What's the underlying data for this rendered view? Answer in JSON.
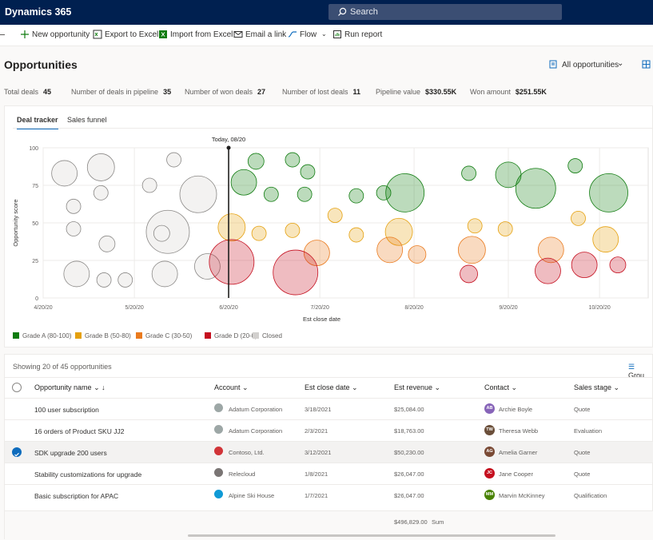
{
  "app": {
    "title": "Dynamics 365"
  },
  "search": {
    "placeholder": "Search"
  },
  "commands": [
    {
      "label": "New opportunity"
    },
    {
      "label": "Export to Excel"
    },
    {
      "label": "Import from Excel"
    },
    {
      "label": "Email a link"
    },
    {
      "label": "Flow"
    },
    {
      "label": "Run report"
    }
  ],
  "page": {
    "title": "Opportunities",
    "view": "All opportunities"
  },
  "stats": [
    {
      "label": "Total deals",
      "value": "45"
    },
    {
      "label": "Number of deals in pipeline",
      "value": "35"
    },
    {
      "label": "Number of won deals",
      "value": "27"
    },
    {
      "label": "Number of lost deals",
      "value": "11"
    },
    {
      "label": "Pipeline value",
      "value": "$330.55K"
    },
    {
      "label": "Won amount",
      "value": "$251.55K"
    }
  ],
  "tabs": [
    {
      "label": "Deal tracker"
    },
    {
      "label": "Sales funnel"
    }
  ],
  "chart_data": {
    "type": "scatter",
    "title": "",
    "xlabel": "Est close date",
    "ylabel": "Opportunity score",
    "ylim": [
      0,
      100
    ],
    "yticks": [
      "0",
      "25",
      "50",
      "75",
      "100"
    ],
    "xticks": [
      "4/20/20",
      "5/20/20",
      "6/20/20",
      "7/20/20",
      "8/20/20",
      "9/20/20",
      "10/20/20"
    ],
    "today_label": "Today, 08/20",
    "colors": {
      "A": "#107c10",
      "B": "#e5a00d",
      "C": "#ea7a1d",
      "D": "#c50f1f",
      "Closed": "#a19f9d"
    },
    "legend": [
      {
        "key": "A",
        "label": "Grade A (80-100)"
      },
      {
        "key": "B",
        "label": "Grade B (50-80)"
      },
      {
        "key": "C",
        "label": "Grade C (30-50)"
      },
      {
        "key": "D",
        "label": "Grade D (20-0)"
      },
      {
        "key": "Closed",
        "label": "Closed"
      }
    ],
    "points": [
      {
        "day": 7,
        "score": 83,
        "r": 16,
        "g": "Closed"
      },
      {
        "day": 10,
        "score": 61,
        "r": 9,
        "g": "Closed"
      },
      {
        "day": 10,
        "score": 46,
        "r": 9,
        "g": "Closed"
      },
      {
        "day": 11,
        "score": 16,
        "r": 16,
        "g": "Closed"
      },
      {
        "day": 19,
        "score": 87,
        "r": 17,
        "g": "Closed"
      },
      {
        "day": 19,
        "score": 70,
        "r": 9,
        "g": "Closed"
      },
      {
        "day": 21,
        "score": 36,
        "r": 10,
        "g": "Closed"
      },
      {
        "day": 20,
        "score": 12,
        "r": 9,
        "g": "Closed"
      },
      {
        "day": 27,
        "score": 12,
        "r": 9,
        "g": "Closed"
      },
      {
        "day": 35,
        "score": 75,
        "r": 9,
        "g": "Closed"
      },
      {
        "day": 43,
        "score": 92,
        "r": 9,
        "g": "Closed"
      },
      {
        "day": 41,
        "score": 44,
        "r": 27,
        "g": "Closed"
      },
      {
        "day": 39,
        "score": 43,
        "r": 10,
        "g": "Closed"
      },
      {
        "day": 40,
        "score": 16,
        "r": 16,
        "g": "Closed"
      },
      {
        "day": 51,
        "score": 69,
        "r": 23,
        "g": "Closed"
      },
      {
        "day": 54,
        "score": 21,
        "r": 16,
        "g": "Closed"
      },
      {
        "day": 70,
        "score": 91,
        "r": 10,
        "g": "A"
      },
      {
        "day": 82,
        "score": 92,
        "r": 9,
        "g": "A"
      },
      {
        "day": 87,
        "score": 84,
        "r": 9,
        "g": "A"
      },
      {
        "day": 66,
        "score": 77,
        "r": 16,
        "g": "A"
      },
      {
        "day": 75,
        "score": 69,
        "r": 9,
        "g": "A"
      },
      {
        "day": 86,
        "score": 69,
        "r": 9,
        "g": "A"
      },
      {
        "day": 103,
        "score": 68,
        "r": 9,
        "g": "A"
      },
      {
        "day": 112,
        "score": 70,
        "r": 9,
        "g": "A"
      },
      {
        "day": 119,
        "score": 70,
        "r": 24,
        "g": "A"
      },
      {
        "day": 140,
        "score": 83,
        "r": 9,
        "g": "A"
      },
      {
        "day": 153,
        "score": 82,
        "r": 16,
        "g": "A"
      },
      {
        "day": 162,
        "score": 73,
        "r": 25,
        "g": "A"
      },
      {
        "day": 175,
        "score": 88,
        "r": 9,
        "g": "A"
      },
      {
        "day": 186,
        "score": 70,
        "r": 24,
        "g": "A"
      },
      {
        "day": 62,
        "score": 47,
        "r": 17,
        "g": "B"
      },
      {
        "day": 71,
        "score": 43,
        "r": 9,
        "g": "B"
      },
      {
        "day": 82,
        "score": 45,
        "r": 9,
        "g": "B"
      },
      {
        "day": 96,
        "score": 55,
        "r": 9,
        "g": "B"
      },
      {
        "day": 103,
        "score": 42,
        "r": 9,
        "g": "B"
      },
      {
        "day": 117,
        "score": 44,
        "r": 17,
        "g": "B"
      },
      {
        "day": 142,
        "score": 48,
        "r": 9,
        "g": "B"
      },
      {
        "day": 152,
        "score": 46,
        "r": 9,
        "g": "B"
      },
      {
        "day": 176,
        "score": 53,
        "r": 9,
        "g": "B"
      },
      {
        "day": 185,
        "score": 39,
        "r": 16,
        "g": "B"
      },
      {
        "day": 90,
        "score": 30,
        "r": 16,
        "g": "C"
      },
      {
        "day": 114,
        "score": 32,
        "r": 16,
        "g": "C"
      },
      {
        "day": 123,
        "score": 29,
        "r": 11,
        "g": "C"
      },
      {
        "day": 141,
        "score": 32,
        "r": 17,
        "g": "C"
      },
      {
        "day": 167,
        "score": 32,
        "r": 16,
        "g": "C"
      },
      {
        "day": 62,
        "score": 24,
        "r": 28,
        "g": "D"
      },
      {
        "day": 83,
        "score": 17,
        "r": 28,
        "g": "D"
      },
      {
        "day": 140,
        "score": 16,
        "r": 11,
        "g": "D"
      },
      {
        "day": 166,
        "score": 18,
        "r": 16,
        "g": "D"
      },
      {
        "day": 178,
        "score": 22,
        "r": 16,
        "g": "D"
      },
      {
        "day": 189,
        "score": 22,
        "r": 10,
        "g": "D"
      }
    ]
  },
  "grid": {
    "showing": "Showing 20 of 45 opportunities",
    "group_label": "Grou",
    "columns": [
      "Opportunity name",
      "Account",
      "Est close date",
      "Est revenue",
      "Contact",
      "Sales stage"
    ],
    "rows": [
      {
        "name": "100 user subscription",
        "account": "Adatum Corporation",
        "acc_color": "#9da7a6",
        "date": "3/18/2021",
        "revenue": "$25,084.00",
        "contact": "Archie Boyle",
        "initials": "AB",
        "av_color": "#8764b8",
        "stage": "Quote",
        "selected": false
      },
      {
        "name": "16 orders of Product SKU JJ2",
        "account": "Adatum Corporation",
        "acc_color": "#9da7a6",
        "date": "2/3/2021",
        "revenue": "$18,763.00",
        "contact": "Theresa Webb",
        "initials": "TW",
        "av_color": "#6b4f3a",
        "stage": "Evaluation",
        "selected": false
      },
      {
        "name": "SDK upgrade 200 users",
        "account": "Contoso, Ltd.",
        "acc_color": "#d13438",
        "date": "3/12/2021",
        "revenue": "$50,230.00",
        "contact": "Amelia Garner",
        "initials": "AG",
        "av_color": "#7a4a35",
        "stage": "Quote",
        "selected": true
      },
      {
        "name": "Stability customizations for upgrade",
        "account": "Relecloud",
        "acc_color": "#7a7574",
        "date": "1/8/2021",
        "revenue": "$26,047.00",
        "contact": "Jane Cooper",
        "initials": "JC",
        "av_color": "#c50f1f",
        "stage": "Quote",
        "selected": false
      },
      {
        "name": "Basic subscription for APAC",
        "account": "Alpine Ski House",
        "acc_color": "#0f9ad6",
        "date": "1/7/2021",
        "revenue": "$26,047.00",
        "contact": "Marvin McKinney",
        "initials": "MM",
        "av_color": "#498205",
        "stage": "Qualification",
        "selected": false
      }
    ],
    "sum_value": "$496,829.00",
    "sum_label": "Sum"
  }
}
